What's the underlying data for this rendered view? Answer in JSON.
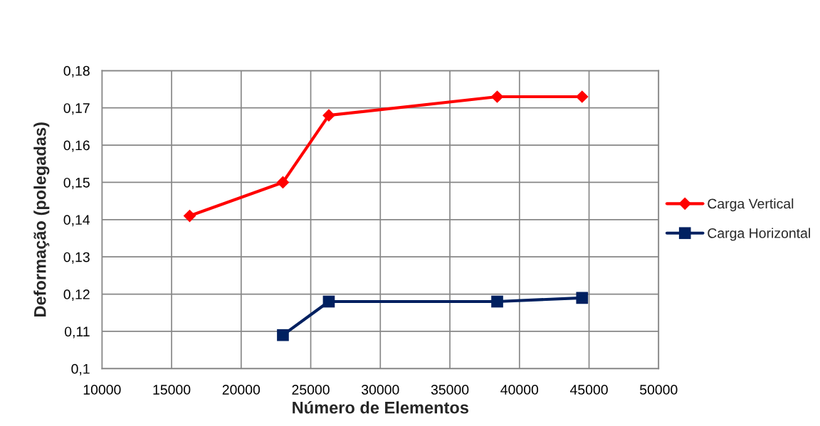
{
  "chart_data": {
    "type": "line",
    "xlabel": "Número de Elementos",
    "ylabel": "Deformação (polegadas)",
    "series": [
      {
        "name": "Carga Vertical",
        "color": "#ff0000",
        "marker": "diamond",
        "x": [
          16300,
          23000,
          26300,
          38400,
          44500
        ],
        "values": [
          0.141,
          0.15,
          0.168,
          0.173,
          0.173
        ]
      },
      {
        "name": "Carga Horizontal",
        "color": "#002060",
        "marker": "square",
        "x": [
          23000,
          26300,
          38400,
          44500
        ],
        "values": [
          0.109,
          0.118,
          0.118,
          0.119
        ]
      }
    ],
    "xlim": [
      10000,
      50000
    ],
    "xticks": [
      10000,
      15000,
      20000,
      25000,
      30000,
      35000,
      40000,
      45000,
      50000
    ],
    "ylim": [
      0.1,
      0.18
    ],
    "yticks": [
      {
        "value": 0.1,
        "label": "0,1"
      },
      {
        "value": 0.11,
        "label": "0,11"
      },
      {
        "value": 0.12,
        "label": "0,12"
      },
      {
        "value": 0.13,
        "label": "0,13"
      },
      {
        "value": 0.14,
        "label": "0,14"
      },
      {
        "value": 0.15,
        "label": "0,15"
      },
      {
        "value": 0.16,
        "label": "0,16"
      },
      {
        "value": 0.17,
        "label": "0,17"
      },
      {
        "value": 0.18,
        "label": "0,18"
      }
    ],
    "grid": true,
    "legend": "right",
    "line_style": "solid"
  }
}
